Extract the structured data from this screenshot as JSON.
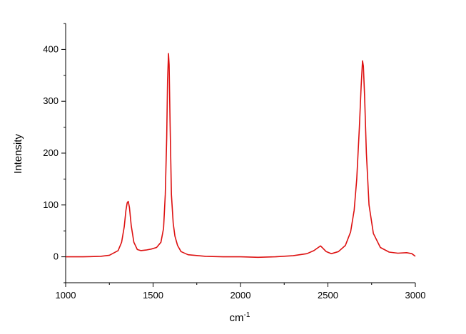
{
  "chart_data": {
    "type": "line",
    "title": "",
    "xlabel": "cm",
    "xlabel_superscript": "-1",
    "ylabel": "Intensity",
    "xlim": [
      1000,
      3000
    ],
    "ylim": [
      -50,
      450
    ],
    "x_ticks": [
      1000,
      1500,
      2000,
      2500,
      3000
    ],
    "y_ticks": [
      0,
      100,
      200,
      300,
      400
    ],
    "grid": false,
    "legend": "none",
    "line_color": "#dd1111",
    "series": [
      {
        "x": [
          1000,
          1100,
          1200,
          1250,
          1300,
          1320,
          1335,
          1345,
          1352,
          1358,
          1365,
          1375,
          1390,
          1410,
          1430,
          1460,
          1490,
          1520,
          1545,
          1560,
          1570,
          1578,
          1583,
          1588,
          1592,
          1597,
          1605,
          1615,
          1625,
          1640,
          1660,
          1700,
          1800,
          1900,
          2000,
          2100,
          2200,
          2300,
          2380,
          2420,
          2445,
          2458,
          2470,
          2490,
          2520,
          2560,
          2600,
          2630,
          2650,
          2665,
          2680,
          2690,
          2698,
          2703,
          2710,
          2720,
          2735,
          2760,
          2800,
          2850,
          2900,
          2950,
          2980,
          3000
        ],
        "y": [
          0,
          0,
          1,
          3,
          12,
          28,
          58,
          90,
          104,
          107,
          95,
          60,
          28,
          14,
          12,
          13,
          15,
          18,
          28,
          55,
          120,
          230,
          340,
          392,
          370,
          260,
          120,
          65,
          40,
          22,
          10,
          4,
          1,
          0,
          0,
          -1,
          0,
          2,
          6,
          12,
          18,
          21,
          17,
          10,
          6,
          10,
          22,
          48,
          90,
          150,
          250,
          330,
          378,
          368,
          310,
          200,
          100,
          45,
          18,
          9,
          7,
          8,
          6,
          1
        ]
      }
    ]
  }
}
